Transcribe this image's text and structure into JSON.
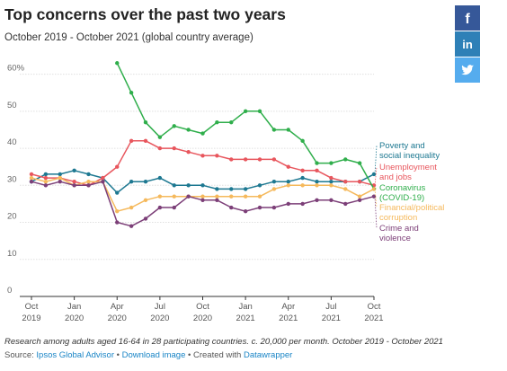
{
  "header": {
    "title": "Top concerns over the past two years",
    "subtitle": "October 2019 - October 2021 (global country average)"
  },
  "share": [
    {
      "icon": "facebook-icon",
      "glyph": "f"
    },
    {
      "icon": "linkedin-icon",
      "glyph": "in"
    },
    {
      "icon": "twitter-icon",
      "glyph": "bird"
    }
  ],
  "footer": {
    "note": "Research among adults aged 16-64 in 28 participating countries. c. 20,000 per month. October 2019 - October 2021",
    "source_prefix": "Source: ",
    "source_name": "Ipsos Global Advisor",
    "sep1": " • ",
    "download": "Download image",
    "sep2": " • Created with ",
    "created_with": "Datawrapper"
  },
  "chart_data": {
    "type": "line",
    "x": [
      "2019-10",
      "2019-11",
      "2019-12",
      "2020-01",
      "2020-02",
      "2020-03",
      "2020-04",
      "2020-05",
      "2020-06",
      "2020-07",
      "2020-08",
      "2020-09",
      "2020-10",
      "2020-11",
      "2020-12",
      "2021-01",
      "2021-02",
      "2021-03",
      "2021-04",
      "2021-05",
      "2021-06",
      "2021-07",
      "2021-08",
      "2021-09",
      "2021-10"
    ],
    "x_ticks": [
      {
        "x": "2019-10",
        "month": "Oct",
        "year": "2019"
      },
      {
        "x": "2020-01",
        "month": "Jan",
        "year": "2020"
      },
      {
        "x": "2020-04",
        "month": "Apr",
        "year": "2020"
      },
      {
        "x": "2020-07",
        "month": "Jul",
        "year": "2020"
      },
      {
        "x": "2020-10",
        "month": "Oct",
        "year": "2020"
      },
      {
        "x": "2021-01",
        "month": "Jan",
        "year": "2021"
      },
      {
        "x": "2021-04",
        "month": "Apr",
        "year": "2021"
      },
      {
        "x": "2021-07",
        "month": "Jul",
        "year": "2021"
      },
      {
        "x": "2021-10",
        "month": "Oct",
        "year": "2021"
      }
    ],
    "ylim": [
      0,
      65
    ],
    "y_ticks": [
      0,
      10,
      20,
      30,
      40,
      50,
      60
    ],
    "y_tick_labels": [
      "0",
      "10",
      "20",
      "30",
      "40",
      "50",
      "60%"
    ],
    "grid": true,
    "legend": "direct-labels-right",
    "series": [
      {
        "name": "Poverty and social inequality",
        "label_lines": [
          "Poverty and",
          "social inequality"
        ],
        "color": "#1d7891",
        "values": [
          31,
          33,
          33,
          34,
          33,
          32,
          28,
          31,
          31,
          32,
          30,
          30,
          30,
          29,
          29,
          29,
          30,
          31,
          31,
          32,
          31,
          31,
          31,
          31,
          33
        ]
      },
      {
        "name": "Unemployment and jobs",
        "label_lines": [
          "Unemployment",
          "and jobs"
        ],
        "color": "#e8565d",
        "values": [
          33,
          32,
          32,
          31,
          30,
          32,
          35,
          42,
          42,
          40,
          40,
          39,
          38,
          38,
          37,
          37,
          37,
          37,
          35,
          34,
          34,
          32,
          31,
          31,
          30
        ]
      },
      {
        "name": "Coronavirus (COVID-19)",
        "label_lines": [
          "Coronavirus",
          "(COVID-19)"
        ],
        "color": "#2fae4b",
        "values": [
          null,
          null,
          null,
          null,
          null,
          null,
          63,
          55,
          47,
          43,
          46,
          45,
          44,
          47,
          47,
          50,
          50,
          45,
          45,
          42,
          36,
          36,
          37,
          36,
          29
        ]
      },
      {
        "name": "Financial/political corruption",
        "label_lines": [
          "Financial/political",
          "corruption"
        ],
        "color": "#f5b95c",
        "values": [
          32,
          31,
          32,
          30,
          31,
          31,
          23,
          24,
          26,
          27,
          27,
          27,
          27,
          27,
          27,
          27,
          27,
          29,
          30,
          30,
          30,
          30,
          29,
          27,
          29
        ]
      },
      {
        "name": "Crime and violence",
        "label_lines": [
          "Crime and",
          "violence"
        ],
        "color": "#7c3f78",
        "values": [
          31,
          30,
          31,
          30,
          30,
          31,
          20,
          19,
          21,
          24,
          24,
          27,
          26,
          26,
          24,
          23,
          24,
          24,
          25,
          25,
          26,
          26,
          25,
          26,
          27
        ]
      }
    ]
  }
}
